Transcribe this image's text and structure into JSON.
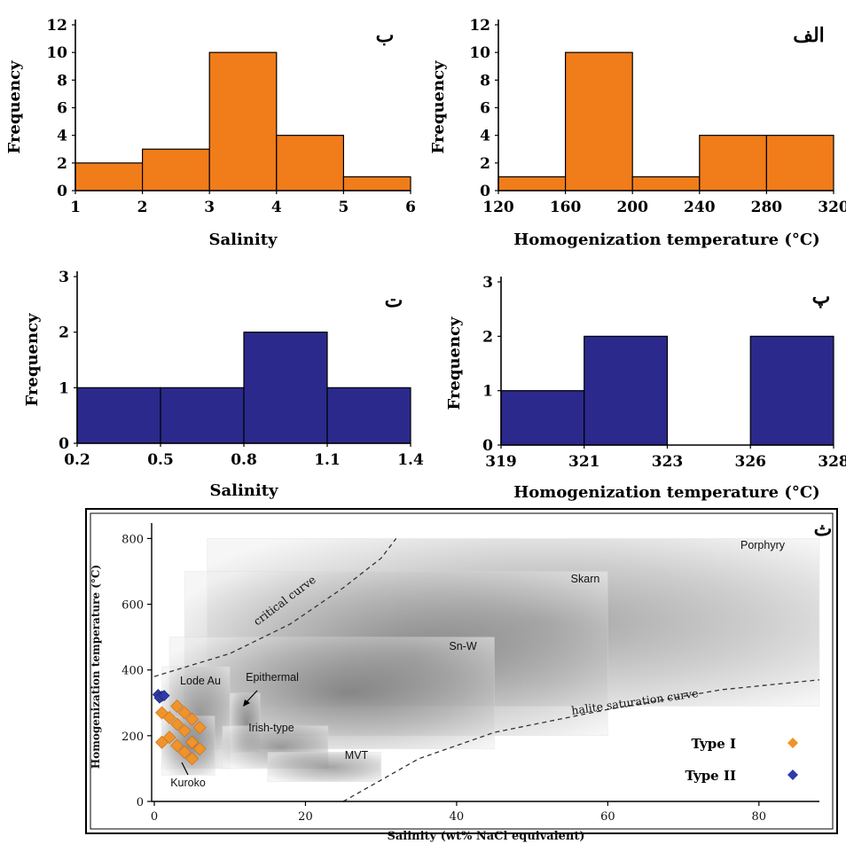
{
  "colors": {
    "orange": "#f07c1a",
    "navy": "#2b2a8c",
    "type1_marker": "#f0932b",
    "type2_marker": "#2e3ba8"
  },
  "chart_data": [
    {
      "id": "alef",
      "type": "bar",
      "panel_label": "الف",
      "categories": [
        "120-160",
        "160-200",
        "200-240",
        "240-280",
        "280-320"
      ],
      "x_ticks": [
        "120",
        "160",
        "200",
        "240",
        "280",
        "320"
      ],
      "values": [
        1,
        10,
        1,
        4,
        4
      ],
      "xlabel": "Homogenization temperature (°C)",
      "ylabel": "Frequency",
      "ylim": [
        0,
        12
      ],
      "y_ticks": [
        "0",
        "2",
        "4",
        "6",
        "8",
        "10",
        "12"
      ],
      "color": "#f07c1a"
    },
    {
      "id": "be",
      "type": "bar",
      "panel_label": "ب",
      "categories": [
        "1-2",
        "2-3",
        "3-4",
        "4-5",
        "5-6"
      ],
      "x_ticks": [
        "1",
        "2",
        "3",
        "4",
        "5",
        "6"
      ],
      "values": [
        2,
        3,
        10,
        4,
        1
      ],
      "xlabel": "Salinity",
      "ylabel": "Frequency",
      "ylim": [
        0,
        12
      ],
      "y_ticks": [
        "0",
        "2",
        "4",
        "6",
        "8",
        "10",
        "12"
      ],
      "color": "#f07c1a"
    },
    {
      "id": "pe",
      "type": "bar",
      "panel_label": "پ",
      "categories": [
        "319-321",
        "321-323",
        "323-326",
        "326-328"
      ],
      "x_ticks": [
        "319",
        "321",
        "323",
        "326",
        "328"
      ],
      "values": [
        1,
        2,
        0,
        2
      ],
      "xlabel": "Homogenization temperature (°C)",
      "ylabel": "Frequency",
      "ylim": [
        0,
        3
      ],
      "y_ticks": [
        "0",
        "1",
        "2",
        "3"
      ],
      "color": "#2b2a8c"
    },
    {
      "id": "te",
      "type": "bar",
      "panel_label": "ت",
      "categories": [
        "0.2-0.5",
        "0.5-0.8",
        "0.8-1.1",
        "1.1-1.4"
      ],
      "x_ticks": [
        "0.2",
        "0.5",
        "0.8",
        "1.1",
        "1.4"
      ],
      "values": [
        1,
        1,
        2,
        1
      ],
      "xlabel": "Salinity",
      "ylabel": "Frequency",
      "ylim": [
        0,
        3
      ],
      "y_ticks": [
        "0",
        "1",
        "2",
        "3"
      ],
      "color": "#2b2a8c"
    },
    {
      "id": "se",
      "type": "scatter",
      "panel_label": "ث",
      "xlabel": "Salinity (wt% NaCl equivalent)",
      "ylabel": "Homogenization temperature (°C)",
      "xlim": [
        0,
        88
      ],
      "ylim": [
        0,
        820
      ],
      "x_ticks": [
        "0",
        "20",
        "40",
        "60",
        "80"
      ],
      "y_ticks": [
        "0",
        "200",
        "400",
        "600",
        "800"
      ],
      "fields": [
        {
          "name": "Porphyry",
          "x": [
            7,
            88
          ],
          "y": [
            290,
            800
          ]
        },
        {
          "name": "Skarn",
          "x": [
            4,
            60
          ],
          "y": [
            200,
            700
          ]
        },
        {
          "name": "Sn-W",
          "x": [
            2,
            45
          ],
          "y": [
            160,
            500
          ]
        },
        {
          "name": "Lode Au",
          "x": [
            1,
            10
          ],
          "y": [
            100,
            410
          ]
        },
        {
          "name": "Epithermal",
          "x": [
            10,
            14
          ],
          "y": [
            150,
            330
          ]
        },
        {
          "name": "Irish-type",
          "x": [
            9,
            23
          ],
          "y": [
            100,
            230
          ]
        },
        {
          "name": "MVT",
          "x": [
            15,
            30
          ],
          "y": [
            60,
            150
          ]
        },
        {
          "name": "Kuroko",
          "x": [
            1,
            8
          ],
          "y": [
            80,
            260
          ]
        }
      ],
      "curves": [
        {
          "name": "critical curve",
          "points": [
            [
              0,
              380
            ],
            [
              10,
              450
            ],
            [
              18,
              540
            ],
            [
              25,
              650
            ],
            [
              30,
              740
            ],
            [
              32,
              800
            ]
          ]
        },
        {
          "name": "halite saturation curve",
          "points": [
            [
              25,
              0
            ],
            [
              35,
              130
            ],
            [
              45,
              210
            ],
            [
              60,
              280
            ],
            [
              75,
              340
            ],
            [
              88,
              370
            ]
          ]
        }
      ],
      "series": [
        {
          "name": "Type I",
          "color": "#f0932b",
          "points": [
            [
              1,
              270
            ],
            [
              2,
              255
            ],
            [
              3,
              290
            ],
            [
              4,
              270
            ],
            [
              3,
              235
            ],
            [
              5,
              250
            ],
            [
              6,
              225
            ],
            [
              4,
              215
            ],
            [
              2,
              195
            ],
            [
              1,
              180
            ],
            [
              3,
              170
            ],
            [
              5,
              180
            ],
            [
              6,
              160
            ],
            [
              4,
              150
            ],
            [
              5,
              130
            ]
          ]
        },
        {
          "name": "Type II",
          "color": "#2e3ba8",
          "points": [
            [
              0.5,
              325
            ],
            [
              1,
              320
            ],
            [
              0.7,
              315
            ],
            [
              1.3,
              322
            ]
          ]
        }
      ],
      "legend": [
        {
          "label": "Type I",
          "color": "#f0932b"
        },
        {
          "label": "Type II",
          "color": "#2e3ba8"
        }
      ]
    }
  ]
}
